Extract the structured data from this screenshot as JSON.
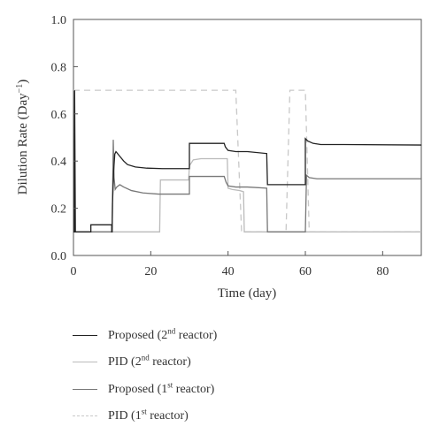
{
  "chart_data": {
    "type": "line",
    "xlabel": "Time (day)",
    "ylabel_text": "Dilution Rate (Day",
    "ylabel_sup": "−1",
    "ylabel_close": ")",
    "xlim": [
      0,
      90
    ],
    "ylim": [
      0.0,
      1.0
    ],
    "xticks": [
      0,
      20,
      40,
      60,
      80
    ],
    "yticks": [
      0.0,
      0.2,
      0.4,
      0.6,
      0.8,
      1.0
    ],
    "xtick_labels": [
      "0",
      "20",
      "40",
      "60",
      "80"
    ],
    "ytick_labels": [
      "0.0",
      "0.2",
      "0.4",
      "0.6",
      "0.8",
      "1.0"
    ],
    "grid": false,
    "legend_position": "below",
    "series": [
      {
        "name_main": "Proposed (2",
        "name_sup": "nd",
        "name_end": " reactor)",
        "color": "#222222",
        "dash": "none",
        "points": [
          [
            0,
            0.1
          ],
          [
            0.2,
            0.1
          ],
          [
            0.3,
            0.7
          ],
          [
            0.5,
            0.1
          ],
          [
            4.5,
            0.1
          ],
          [
            4.5,
            0.13
          ],
          [
            9.9,
            0.13
          ],
          [
            9.9,
            0.1
          ],
          [
            10,
            0.1
          ],
          [
            10.1,
            0.22
          ],
          [
            10.4,
            0.36
          ],
          [
            10.7,
            0.43
          ],
          [
            11,
            0.44
          ],
          [
            12,
            0.42
          ],
          [
            13,
            0.4
          ],
          [
            14,
            0.385
          ],
          [
            16,
            0.375
          ],
          [
            19,
            0.37
          ],
          [
            23,
            0.368
          ],
          [
            30,
            0.368
          ],
          [
            30,
            0.475
          ],
          [
            39,
            0.475
          ],
          [
            39.3,
            0.46
          ],
          [
            40,
            0.445
          ],
          [
            42,
            0.44
          ],
          [
            45,
            0.44
          ],
          [
            50,
            0.432
          ],
          [
            50.2,
            0.3
          ],
          [
            60,
            0.3
          ],
          [
            60,
            0.495
          ],
          [
            60.6,
            0.485
          ],
          [
            62,
            0.475
          ],
          [
            64,
            0.47
          ],
          [
            70,
            0.47
          ],
          [
            90,
            0.468
          ]
        ]
      },
      {
        "name_main": "PID (2",
        "name_sup": "nd",
        "name_end": " reactor)",
        "color": "#bbbbbb",
        "dash": "none",
        "points": [
          [
            0,
            0.1
          ],
          [
            22.3,
            0.1
          ],
          [
            22.5,
            0.32
          ],
          [
            29.8,
            0.32
          ],
          [
            30,
            0.38
          ],
          [
            31,
            0.405
          ],
          [
            33,
            0.41
          ],
          [
            38,
            0.41
          ],
          [
            39.8,
            0.41
          ],
          [
            40,
            0.285
          ],
          [
            41,
            0.28
          ],
          [
            43,
            0.275
          ],
          [
            44,
            0.27
          ],
          [
            44.2,
            0.1
          ],
          [
            90,
            0.1
          ]
        ]
      },
      {
        "name_main": "Proposed (1",
        "name_sup": "st",
        "name_end": " reactor)",
        "color": "#777777",
        "dash": "none",
        "points": [
          [
            0,
            0.1
          ],
          [
            10,
            0.1
          ],
          [
            10.3,
            0.49
          ],
          [
            10.5,
            0.33
          ],
          [
            10.8,
            0.28
          ],
          [
            11.2,
            0.29
          ],
          [
            12,
            0.3
          ],
          [
            13,
            0.29
          ],
          [
            15,
            0.275
          ],
          [
            18,
            0.265
          ],
          [
            22,
            0.26
          ],
          [
            30,
            0.26
          ],
          [
            30,
            0.335
          ],
          [
            39,
            0.335
          ],
          [
            39.5,
            0.31
          ],
          [
            40,
            0.295
          ],
          [
            42,
            0.29
          ],
          [
            45,
            0.29
          ],
          [
            50,
            0.285
          ],
          [
            50.2,
            0.1
          ],
          [
            60,
            0.1
          ],
          [
            60.3,
            0.34
          ],
          [
            61,
            0.33
          ],
          [
            63,
            0.325
          ],
          [
            70,
            0.325
          ],
          [
            90,
            0.325
          ]
        ]
      },
      {
        "name_main": "PID (1",
        "name_sup": "st",
        "name_end": " reactor)",
        "color": "#c8c8c8",
        "dash": "7,5",
        "points": [
          [
            0,
            0.7
          ],
          [
            42,
            0.7
          ],
          [
            43.5,
            0.1
          ],
          [
            55,
            0.1
          ],
          [
            56,
            0.7
          ],
          [
            60,
            0.7
          ],
          [
            61,
            0.1
          ],
          [
            90,
            0.1
          ]
        ]
      }
    ]
  }
}
